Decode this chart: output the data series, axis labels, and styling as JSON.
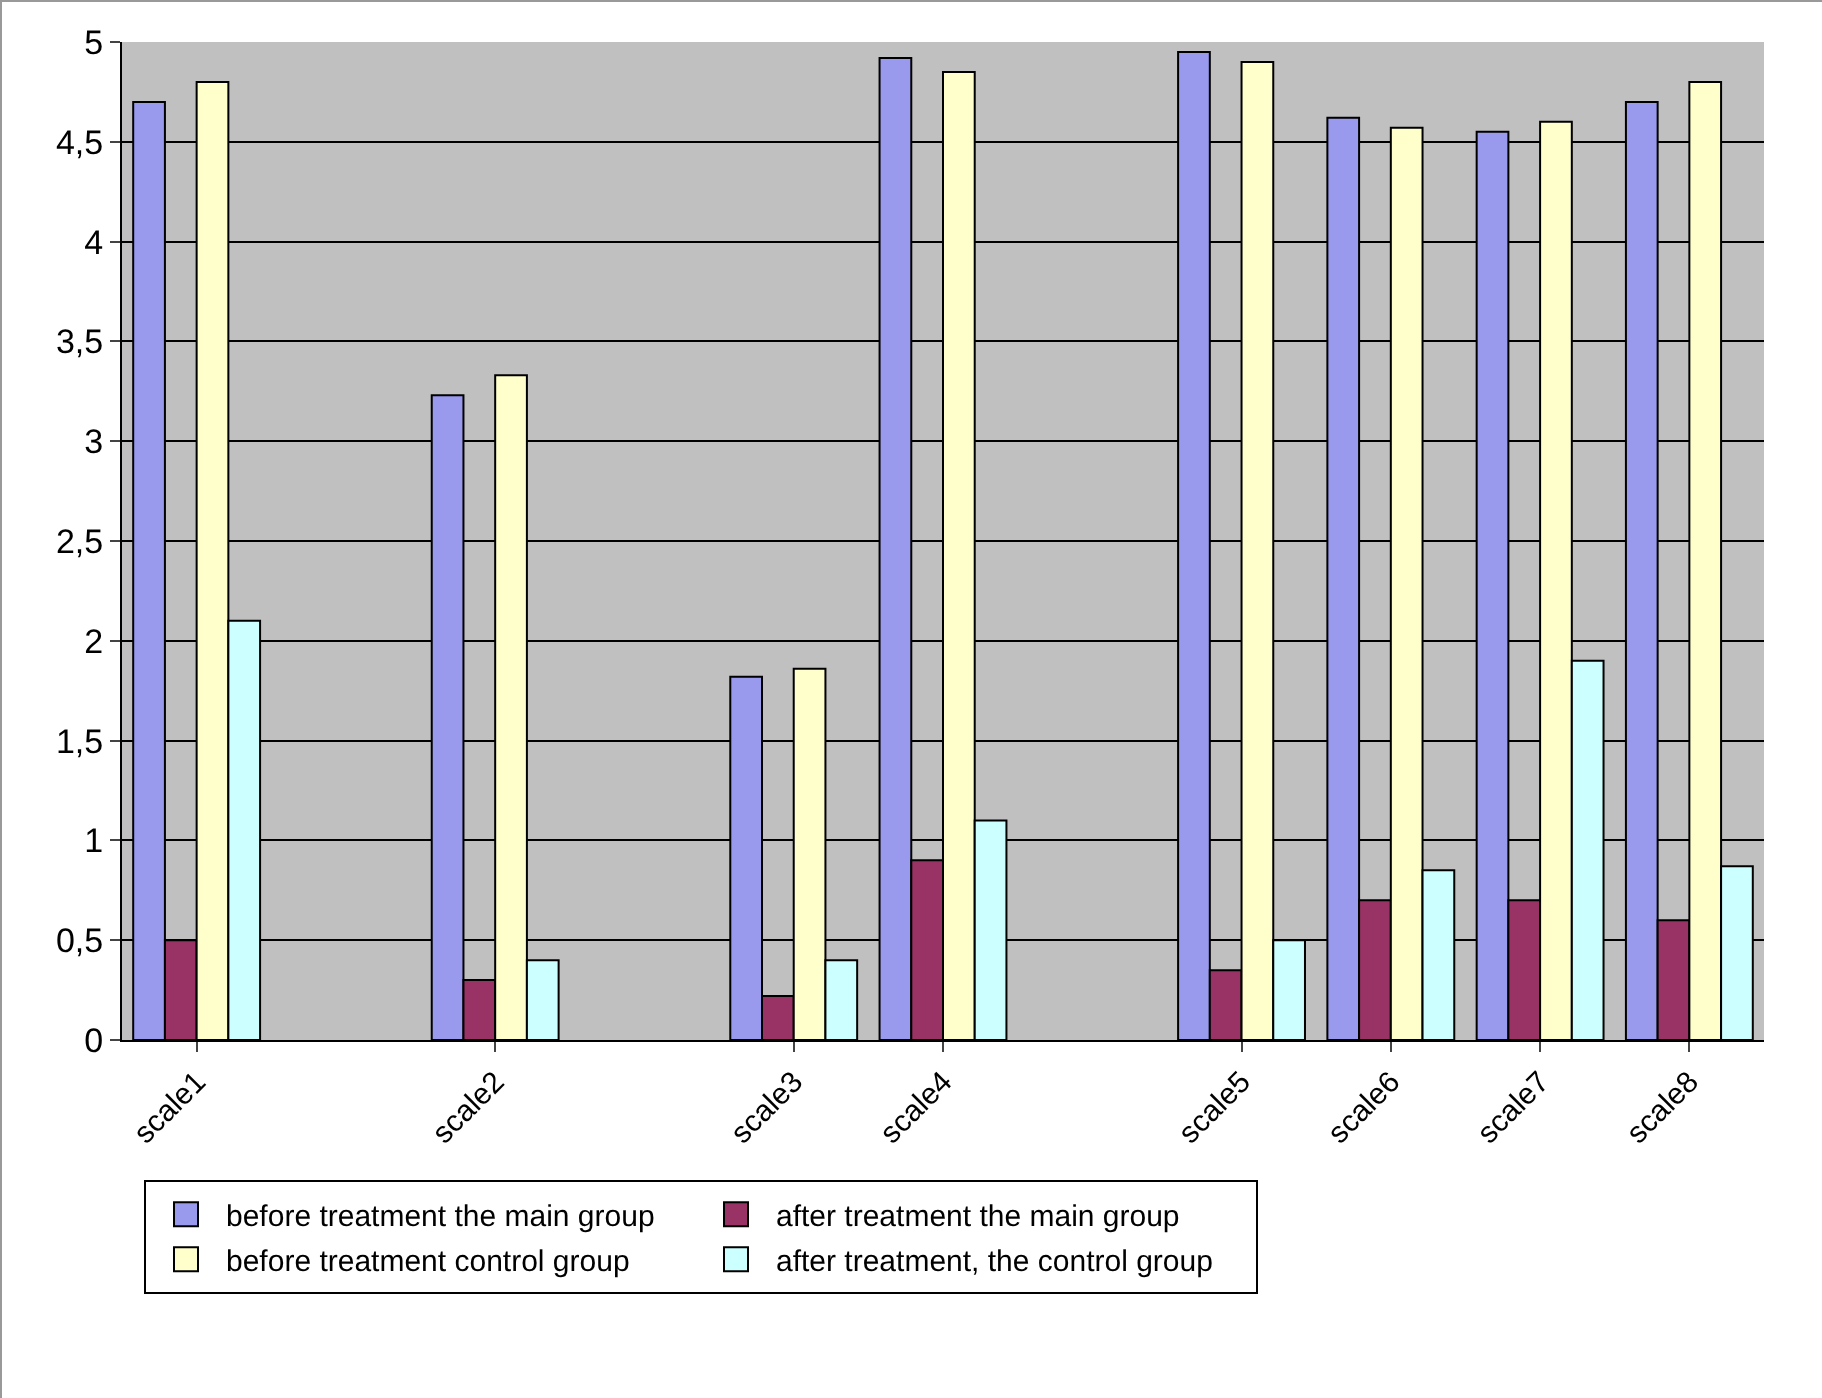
{
  "chart_data": {
    "type": "bar",
    "categories": [
      "scale1",
      null,
      "scale2",
      null,
      "scale3",
      "scale4",
      null,
      "scale5",
      "scale6",
      "scale7",
      "scale8"
    ],
    "series": [
      {
        "name": "before treatment the main group",
        "color": "#9999ee",
        "values": [
          4.7,
          null,
          3.23,
          null,
          1.82,
          4.92,
          null,
          4.95,
          4.62,
          4.55,
          4.7
        ]
      },
      {
        "name": "after treatment the main group",
        "color": "#993366",
        "values": [
          0.5,
          null,
          0.3,
          null,
          0.22,
          0.9,
          null,
          0.35,
          0.7,
          0.7,
          0.6
        ]
      },
      {
        "name": "before treatment control group",
        "color": "#ffffcc",
        "values": [
          4.8,
          null,
          3.33,
          null,
          1.86,
          4.85,
          null,
          4.9,
          4.57,
          4.6,
          4.8
        ]
      },
      {
        "name": "after treatment, the control group",
        "color": "#ccffff",
        "values": [
          2.1,
          null,
          0.4,
          null,
          0.4,
          1.1,
          null,
          0.5,
          0.85,
          1.9,
          0.87
        ]
      }
    ],
    "ylim": [
      0,
      5
    ],
    "yticks": [
      0,
      {
        "value": 0.5,
        "label": "0,5"
      },
      1,
      {
        "value": 1.5,
        "label": "1,5"
      },
      2,
      {
        "value": 2.5,
        "label": "2,5"
      },
      3,
      {
        "value": 3.5,
        "label": "3,5"
      },
      4,
      {
        "value": 4.5,
        "label": "4,5"
      },
      5
    ],
    "grid": "y",
    "legend": "bottom"
  }
}
